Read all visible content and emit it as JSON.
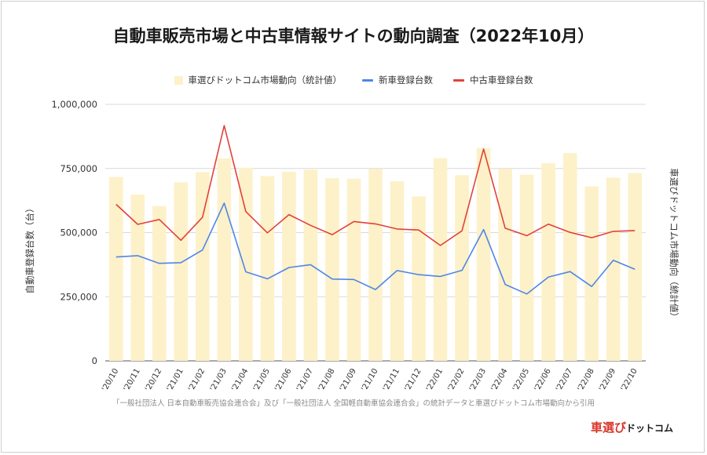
{
  "chart_data": {
    "type": "bar",
    "title": "自動車販売市場と中古車情報サイトの動向調査（2022年10月）",
    "categories": [
      "'20/10",
      "'20/11",
      "'20/12",
      "'21/01",
      "'21/02",
      "'21/03",
      "'21/04",
      "'21/05",
      "'21/06",
      "'21/07",
      "'21/08",
      "'21/09",
      "'21/10",
      "'21/11",
      "'21/12",
      "'22/01",
      "'22/02",
      "'22/03",
      "'22/04",
      "'22/05",
      "'22/06",
      "'22/07",
      "'22/08",
      "'22/09",
      "'22/10"
    ],
    "ylabel": "自動車登録台数（台）",
    "y2label": "車選びドットコム市場動向（統計値）",
    "ylim": [
      0,
      1000000
    ],
    "yticks": [
      0,
      250000,
      500000,
      750000,
      1000000
    ],
    "ytick_labels": [
      "0",
      "250,000",
      "500,000",
      "750,000",
      "1,000,000"
    ],
    "grid": true,
    "legend_position": "top",
    "series": [
      {
        "name": "車選びドットコム市場動向（統計値）",
        "kind": "bar",
        "color": "#fdf1c9",
        "values": [
          717000,
          648000,
          603000,
          696000,
          736000,
          789000,
          753000,
          720000,
          737000,
          745000,
          712000,
          710000,
          748000,
          700000,
          641000,
          790000,
          724000,
          830000,
          749000,
          726000,
          770000,
          810000,
          680000,
          714000,
          732000
        ]
      },
      {
        "name": "新車登録台数",
        "kind": "line",
        "color": "#4f86e8",
        "values": [
          405000,
          410000,
          380000,
          383000,
          432000,
          615000,
          347000,
          320000,
          364000,
          375000,
          319000,
          317000,
          278000,
          352000,
          336000,
          329000,
          353000,
          512000,
          298000,
          261000,
          327000,
          348000,
          290000,
          392000,
          357000
        ]
      },
      {
        "name": "中古車登録台数",
        "kind": "line",
        "color": "#e2413a",
        "values": [
          610000,
          532000,
          551000,
          470000,
          560000,
          917000,
          582000,
          499000,
          570000,
          528000,
          492000,
          543000,
          534000,
          514000,
          510000,
          450000,
          507000,
          826000,
          517000,
          488000,
          533000,
          501000,
          480000,
          505000,
          508000
        ]
      }
    ]
  },
  "source_text": "「一般社団法人 日本自動車販売協会連合会」及び「一般社団法人 全国軽自動車協会連合会」の統計データと車選びドットコム市場動向から引用",
  "logo": {
    "part1": "車選び",
    "part2": "ドットコム"
  }
}
